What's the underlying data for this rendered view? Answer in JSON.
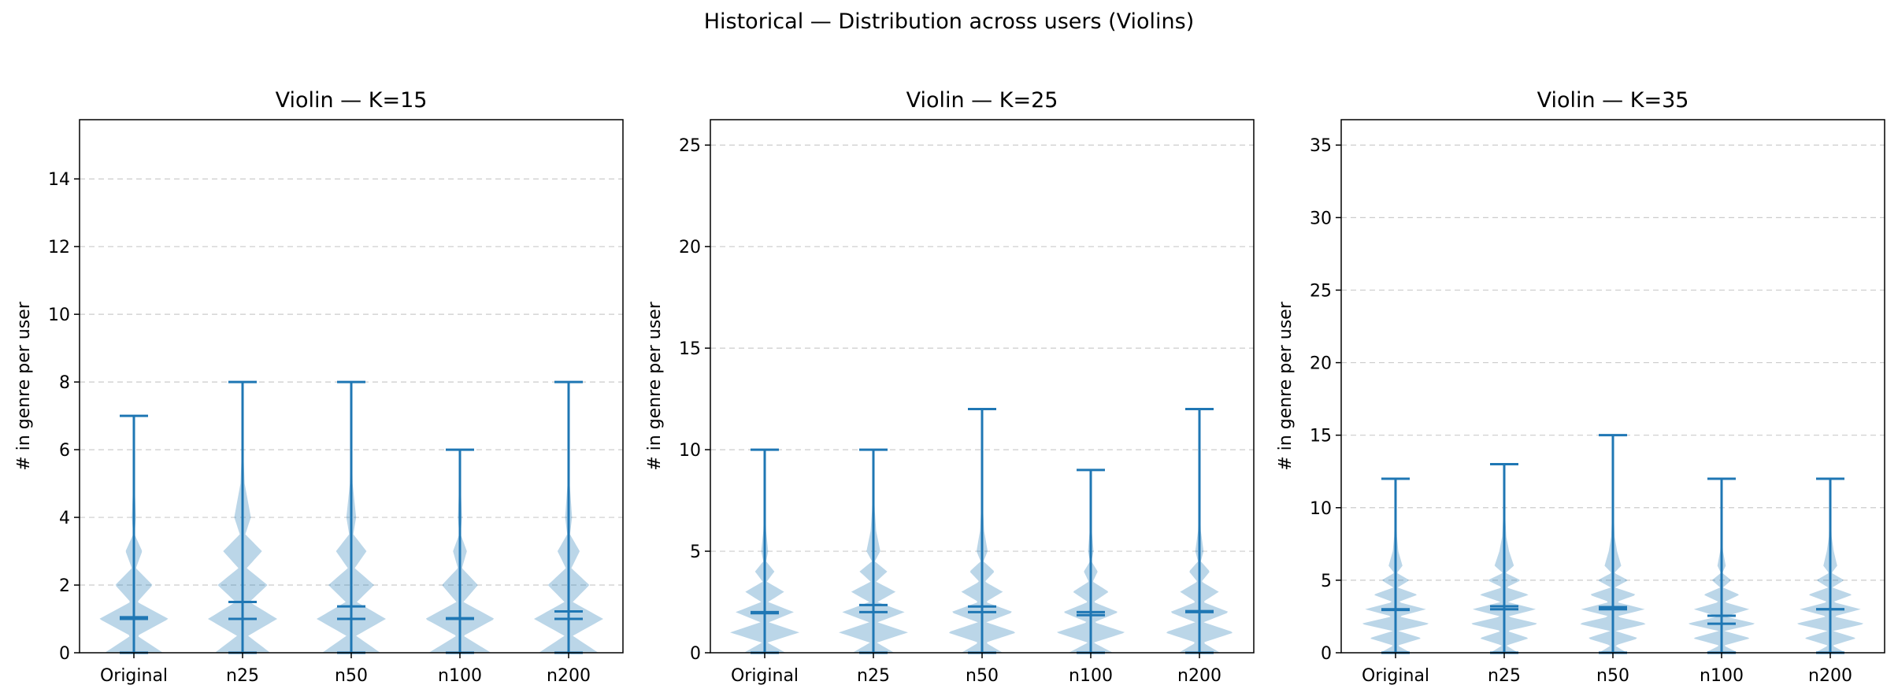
{
  "figure": {
    "suptitle": "Historical — Distribution across users (Violins)"
  },
  "colors": {
    "line": "#1f77b4",
    "body": "#1f77b4",
    "grid": "#cccccc"
  },
  "chart_data": [
    {
      "type": "violin",
      "title": "Violin — K=15",
      "ylabel": "# in genre per user",
      "xlabel": "",
      "ylim": [
        0,
        15.75
      ],
      "yticks": [
        0,
        2,
        4,
        6,
        8,
        10,
        12,
        14
      ],
      "grid": "y, dashed",
      "categories": [
        "Original",
        "n25",
        "n50",
        "n100",
        "n200"
      ],
      "series": [
        {
          "min": 0,
          "max": 7,
          "mean": 1.05,
          "median": 1,
          "kde": [
            [
              0,
              0.42
            ],
            [
              0.5,
              0.05
            ],
            [
              1,
              0.5
            ],
            [
              1.5,
              0.05
            ],
            [
              2,
              0.27
            ],
            [
              2.5,
              0.03
            ],
            [
              3,
              0.12
            ],
            [
              3.5,
              0.01
            ],
            [
              4,
              0.03
            ],
            [
              5,
              0.01
            ],
            [
              6,
              0.005
            ],
            [
              7,
              0.003
            ]
          ]
        },
        {
          "min": 0,
          "max": 8,
          "mean": 1.5,
          "median": 1,
          "kde": [
            [
              0,
              0.4
            ],
            [
              0.5,
              0.08
            ],
            [
              1,
              0.5
            ],
            [
              1.5,
              0.1
            ],
            [
              2,
              0.36
            ],
            [
              2.5,
              0.06
            ],
            [
              3,
              0.28
            ],
            [
              3.5,
              0.04
            ],
            [
              4,
              0.12
            ],
            [
              5,
              0.03
            ],
            [
              6,
              0.01
            ],
            [
              7,
              0.005
            ],
            [
              8,
              0.003
            ]
          ]
        },
        {
          "min": 0,
          "max": 8,
          "mean": 1.37,
          "median": 1,
          "kde": [
            [
              0,
              0.42
            ],
            [
              0.5,
              0.07
            ],
            [
              1,
              0.5
            ],
            [
              1.5,
              0.08
            ],
            [
              2,
              0.33
            ],
            [
              2.5,
              0.05
            ],
            [
              3,
              0.22
            ],
            [
              3.5,
              0.03
            ],
            [
              4,
              0.07
            ],
            [
              5,
              0.02
            ],
            [
              6,
              0.01
            ],
            [
              7,
              0.005
            ],
            [
              8,
              0.003
            ]
          ]
        },
        {
          "min": 0,
          "max": 6,
          "mean": 1.02,
          "median": 1,
          "kde": [
            [
              0,
              0.45
            ],
            [
              0.5,
              0.05
            ],
            [
              1,
              0.5
            ],
            [
              1.5,
              0.05
            ],
            [
              2,
              0.26
            ],
            [
              2.5,
              0.03
            ],
            [
              3,
              0.1
            ],
            [
              3.5,
              0.01
            ],
            [
              4,
              0.03
            ],
            [
              5,
              0.01
            ],
            [
              6,
              0.005
            ]
          ]
        },
        {
          "min": 0,
          "max": 8,
          "mean": 1.22,
          "median": 1,
          "kde": [
            [
              0,
              0.43
            ],
            [
              0.5,
              0.06
            ],
            [
              1,
              0.5
            ],
            [
              1.5,
              0.06
            ],
            [
              2,
              0.3
            ],
            [
              2.5,
              0.04
            ],
            [
              3,
              0.16
            ],
            [
              3.5,
              0.02
            ],
            [
              4,
              0.05
            ],
            [
              5,
              0.015
            ],
            [
              6,
              0.01
            ],
            [
              7,
              0.005
            ],
            [
              8,
              0.003
            ]
          ]
        }
      ]
    },
    {
      "type": "violin",
      "title": "Violin — K=25",
      "ylabel": "# in genre per user",
      "xlabel": "",
      "ylim": [
        0,
        26.25
      ],
      "yticks": [
        0,
        5,
        10,
        15,
        20,
        25
      ],
      "grid": "y, dashed",
      "categories": [
        "Original",
        "n25",
        "n50",
        "n100",
        "n200"
      ],
      "series": [
        {
          "min": 0,
          "max": 10,
          "mean": 1.95,
          "median": 2,
          "kde": [
            [
              0,
              0.3
            ],
            [
              0.5,
              0.04
            ],
            [
              1,
              0.5
            ],
            [
              1.5,
              0.06
            ],
            [
              2,
              0.42
            ],
            [
              2.5,
              0.05
            ],
            [
              3,
              0.28
            ],
            [
              3.5,
              0.03
            ],
            [
              4,
              0.14
            ],
            [
              4.5,
              0.02
            ],
            [
              5,
              0.05
            ],
            [
              6,
              0.02
            ],
            [
              7,
              0.01
            ],
            [
              8,
              0.005
            ],
            [
              10,
              0.003
            ]
          ]
        },
        {
          "min": 0,
          "max": 10,
          "mean": 2.35,
          "median": 2,
          "kde": [
            [
              0,
              0.3
            ],
            [
              0.5,
              0.05
            ],
            [
              1,
              0.5
            ],
            [
              1.5,
              0.06
            ],
            [
              2,
              0.45
            ],
            [
              2.5,
              0.06
            ],
            [
              3,
              0.32
            ],
            [
              3.5,
              0.04
            ],
            [
              4,
              0.2
            ],
            [
              4.5,
              0.02
            ],
            [
              5,
              0.1
            ],
            [
              6,
              0.04
            ],
            [
              7,
              0.02
            ],
            [
              8,
              0.01
            ],
            [
              10,
              0.003
            ]
          ]
        },
        {
          "min": 0,
          "max": 12,
          "mean": 2.28,
          "median": 2,
          "kde": [
            [
              0,
              0.3
            ],
            [
              0.5,
              0.05
            ],
            [
              1,
              0.5
            ],
            [
              1.5,
              0.06
            ],
            [
              2,
              0.45
            ],
            [
              2.5,
              0.05
            ],
            [
              3,
              0.3
            ],
            [
              3.5,
              0.04
            ],
            [
              4,
              0.18
            ],
            [
              4.5,
              0.02
            ],
            [
              5,
              0.08
            ],
            [
              6,
              0.03
            ],
            [
              7,
              0.015
            ],
            [
              8,
              0.008
            ],
            [
              10,
              0.004
            ],
            [
              12,
              0.002
            ]
          ]
        },
        {
          "min": 0,
          "max": 9,
          "mean": 1.85,
          "median": 2,
          "kde": [
            [
              0,
              0.32
            ],
            [
              0.5,
              0.04
            ],
            [
              1,
              0.5
            ],
            [
              1.5,
              0.05
            ],
            [
              2,
              0.4
            ],
            [
              2.5,
              0.04
            ],
            [
              3,
              0.26
            ],
            [
              3.5,
              0.03
            ],
            [
              4,
              0.1
            ],
            [
              4.5,
              0.01
            ],
            [
              5,
              0.04
            ],
            [
              6,
              0.015
            ],
            [
              7,
              0.008
            ],
            [
              9,
              0.003
            ]
          ]
        },
        {
          "min": 0,
          "max": 12,
          "mean": 2.05,
          "median": 2,
          "kde": [
            [
              0,
              0.3
            ],
            [
              0.5,
              0.05
            ],
            [
              1,
              0.5
            ],
            [
              1.5,
              0.06
            ],
            [
              2,
              0.43
            ],
            [
              2.5,
              0.05
            ],
            [
              3,
              0.28
            ],
            [
              3.5,
              0.03
            ],
            [
              4,
              0.15
            ],
            [
              4.5,
              0.02
            ],
            [
              5,
              0.06
            ],
            [
              6,
              0.02
            ],
            [
              7,
              0.01
            ],
            [
              8,
              0.006
            ],
            [
              10,
              0.003
            ],
            [
              12,
              0.002
            ]
          ]
        }
      ]
    },
    {
      "type": "violin",
      "title": "Violin — K=35",
      "ylabel": "# in genre per user",
      "xlabel": "",
      "ylim": [
        0,
        36.75
      ],
      "yticks": [
        0,
        5,
        10,
        15,
        20,
        25,
        30,
        35
      ],
      "grid": "y, dashed",
      "categories": [
        "Original",
        "n25",
        "n50",
        "n100",
        "n200"
      ],
      "series": [
        {
          "min": 0,
          "max": 12,
          "mean": 2.95,
          "median": 3,
          "kde": [
            [
              0,
              0.22
            ],
            [
              0.5,
              0.03
            ],
            [
              1,
              0.38
            ],
            [
              1.5,
              0.04
            ],
            [
              2,
              0.5
            ],
            [
              2.5,
              0.05
            ],
            [
              3,
              0.44
            ],
            [
              3.5,
              0.04
            ],
            [
              4,
              0.32
            ],
            [
              4.5,
              0.03
            ],
            [
              5,
              0.2
            ],
            [
              5.5,
              0.02
            ],
            [
              6,
              0.1
            ],
            [
              7,
              0.04
            ],
            [
              8,
              0.02
            ],
            [
              10,
              0.006
            ],
            [
              12,
              0.003
            ]
          ]
        },
        {
          "min": 0,
          "max": 13,
          "mean": 3.2,
          "median": 3,
          "kde": [
            [
              0,
              0.2
            ],
            [
              0.5,
              0.03
            ],
            [
              1,
              0.36
            ],
            [
              1.5,
              0.04
            ],
            [
              2,
              0.5
            ],
            [
              2.5,
              0.05
            ],
            [
              3,
              0.46
            ],
            [
              3.5,
              0.05
            ],
            [
              4,
              0.36
            ],
            [
              4.5,
              0.03
            ],
            [
              5,
              0.24
            ],
            [
              5.5,
              0.02
            ],
            [
              6,
              0.14
            ],
            [
              7,
              0.07
            ],
            [
              8,
              0.03
            ],
            [
              10,
              0.008
            ],
            [
              13,
              0.003
            ]
          ]
        },
        {
          "min": 0,
          "max": 15,
          "mean": 3.15,
          "median": 3,
          "kde": [
            [
              0,
              0.2
            ],
            [
              0.5,
              0.03
            ],
            [
              1,
              0.37
            ],
            [
              1.5,
              0.04
            ],
            [
              2,
              0.5
            ],
            [
              2.5,
              0.05
            ],
            [
              3,
              0.46
            ],
            [
              3.5,
              0.05
            ],
            [
              4,
              0.34
            ],
            [
              4.5,
              0.03
            ],
            [
              5,
              0.22
            ],
            [
              5.5,
              0.02
            ],
            [
              6,
              0.12
            ],
            [
              7,
              0.06
            ],
            [
              8,
              0.025
            ],
            [
              10,
              0.008
            ],
            [
              12,
              0.004
            ],
            [
              15,
              0.002
            ]
          ]
        },
        {
          "min": 0,
          "max": 12,
          "mean": 2.55,
          "median": 2,
          "kde": [
            [
              0,
              0.24
            ],
            [
              0.5,
              0.03
            ],
            [
              1,
              0.42
            ],
            [
              1.5,
              0.04
            ],
            [
              2,
              0.5
            ],
            [
              2.5,
              0.05
            ],
            [
              3,
              0.4
            ],
            [
              3.5,
              0.04
            ],
            [
              4,
              0.26
            ],
            [
              4.5,
              0.02
            ],
            [
              5,
              0.14
            ],
            [
              5.5,
              0.01
            ],
            [
              6,
              0.06
            ],
            [
              7,
              0.02
            ],
            [
              8,
              0.01
            ],
            [
              10,
              0.004
            ],
            [
              12,
              0.002
            ]
          ]
        },
        {
          "min": 0,
          "max": 12,
          "mean": 3.0,
          "median": 3,
          "kde": [
            [
              0,
              0.22
            ],
            [
              0.5,
              0.03
            ],
            [
              1,
              0.38
            ],
            [
              1.5,
              0.04
            ],
            [
              2,
              0.5
            ],
            [
              2.5,
              0.05
            ],
            [
              3,
              0.44
            ],
            [
              3.5,
              0.04
            ],
            [
              4,
              0.32
            ],
            [
              4.5,
              0.03
            ],
            [
              5,
              0.2
            ],
            [
              5.5,
              0.02
            ],
            [
              6,
              0.1
            ],
            [
              7,
              0.05
            ],
            [
              8,
              0.02
            ],
            [
              10,
              0.006
            ],
            [
              12,
              0.003
            ]
          ]
        }
      ]
    }
  ]
}
